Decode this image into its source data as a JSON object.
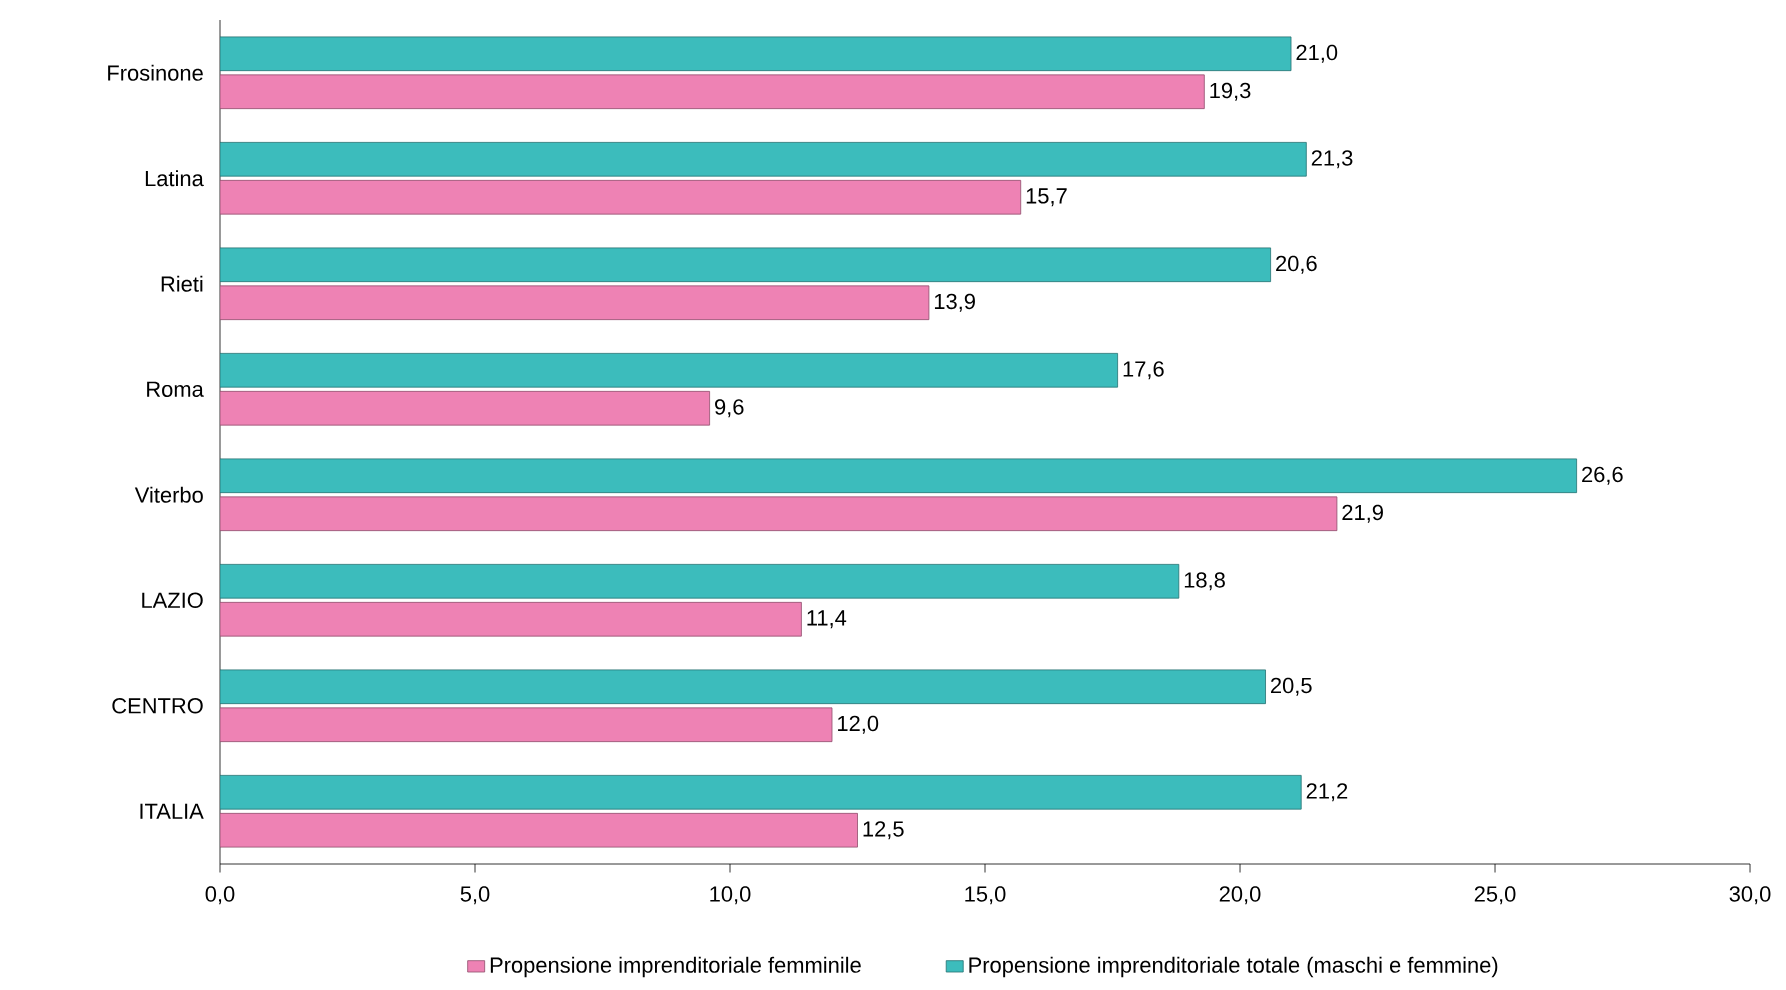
{
  "chart_data": {
    "type": "bar",
    "orientation": "horizontal",
    "categories": [
      "Frosinone",
      "Latina",
      "Rieti",
      "Roma",
      "Viterbo",
      "LAZIO",
      "CENTRO",
      "ITALIA"
    ],
    "series": [
      {
        "name": "Propensione imprenditoriale femminile",
        "color": "#ee82b4",
        "values": [
          19.3,
          15.7,
          13.9,
          9.6,
          21.9,
          11.4,
          12.0,
          12.5
        ],
        "value_labels": [
          "19,3",
          "15,7",
          "13,9",
          "9,6",
          "21,9",
          "11,4",
          "12,0",
          "12,5"
        ]
      },
      {
        "name": "Propensione imprenditoriale totale (maschi e femmine)",
        "color": "#3cbcbc",
        "values": [
          21.0,
          21.3,
          20.6,
          17.6,
          26.6,
          18.8,
          20.5,
          21.2
        ],
        "value_labels": [
          "21,0",
          "21,3",
          "20,6",
          "17,6",
          "26,6",
          "18,8",
          "20,5",
          "21,2"
        ]
      }
    ],
    "xlim": [
      0,
      30
    ],
    "xticks": [
      {
        "value": 0,
        "label": "0,0"
      },
      {
        "value": 5,
        "label": "5,0"
      },
      {
        "value": 10,
        "label": "10,0"
      },
      {
        "value": 15,
        "label": "15,0"
      },
      {
        "value": 20,
        "label": "20,0"
      },
      {
        "value": 25,
        "label": "25,0"
      },
      {
        "value": 30,
        "label": "30,0"
      }
    ],
    "grid": false,
    "legend": "bottom"
  }
}
